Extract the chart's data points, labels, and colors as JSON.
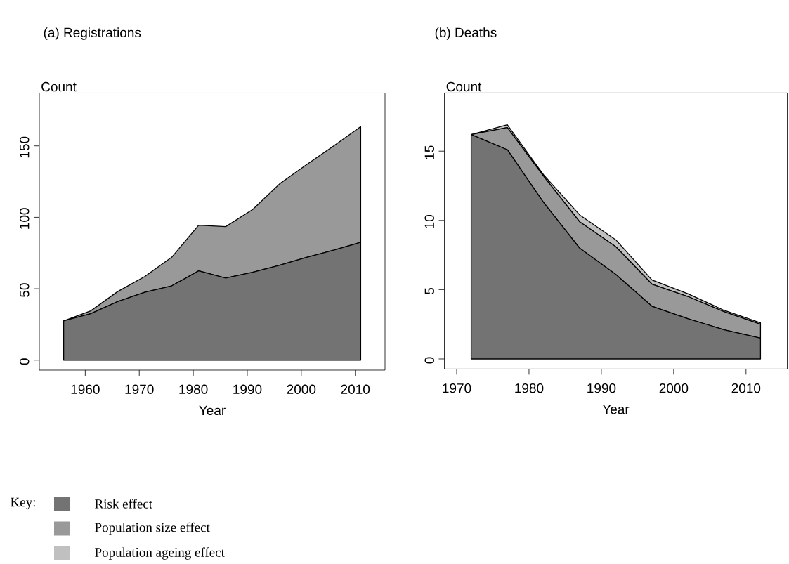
{
  "chart_data": [
    {
      "type": "area",
      "title": "(a) Registrations",
      "xlabel": "Year",
      "ylabel": "Count",
      "stacked": true,
      "x": [
        1956,
        1961,
        1966,
        1971,
        1976,
        1981,
        1986,
        1991,
        1996,
        2001,
        2006,
        2011
      ],
      "series": [
        {
          "color": "#737373",
          "values": [
            27.5,
            32.5,
            41,
            47.5,
            52,
            62.5,
            57.5,
            61.5,
            66.5,
            72,
            77,
            82.5
          ]
        },
        {
          "color": "#999999",
          "values": [
            0,
            2,
            7,
            11,
            20,
            32,
            36,
            44,
            57,
            65,
            73,
            81
          ]
        }
      ],
      "xlim": [
        1951.5,
        2015.5
      ],
      "ylim": [
        -7,
        187
      ],
      "xticks": [
        1960,
        1970,
        1980,
        1990,
        2000,
        2010
      ],
      "yticks": [
        0,
        50,
        100,
        150
      ]
    },
    {
      "type": "area",
      "title": "(b) Deaths",
      "xlabel": "Year",
      "ylabel": "Count",
      "stacked": true,
      "legend": "bottom",
      "legend_title": "Key:",
      "x": [
        1972,
        1977,
        1982,
        1987,
        1992,
        1997,
        2002,
        2007,
        2012
      ],
      "series": [
        {
          "name": "Risk effect",
          "color": "#737373",
          "values": [
            16.2,
            15.1,
            11.3,
            8.0,
            6.1,
            3.8,
            2.9,
            2.1,
            1.5
          ]
        },
        {
          "name": "Population size effect",
          "color": "#999999",
          "values": [
            0,
            1.6,
            1.9,
            1.9,
            2.0,
            1.6,
            1.6,
            1.3,
            1.0
          ]
        },
        {
          "name": "Population ageing effect",
          "color": "#c0c0c0",
          "values": [
            0,
            0.2,
            0.1,
            0.5,
            0.5,
            0.3,
            0.2,
            0.1,
            0.1
          ]
        }
      ],
      "xlim": [
        1968.3,
        2015.7
      ],
      "ylim": [
        -0.73,
        19.2
      ],
      "xticks": [
        1970,
        1980,
        1990,
        2000,
        2010
      ],
      "yticks": [
        0,
        5,
        10,
        15
      ]
    }
  ]
}
